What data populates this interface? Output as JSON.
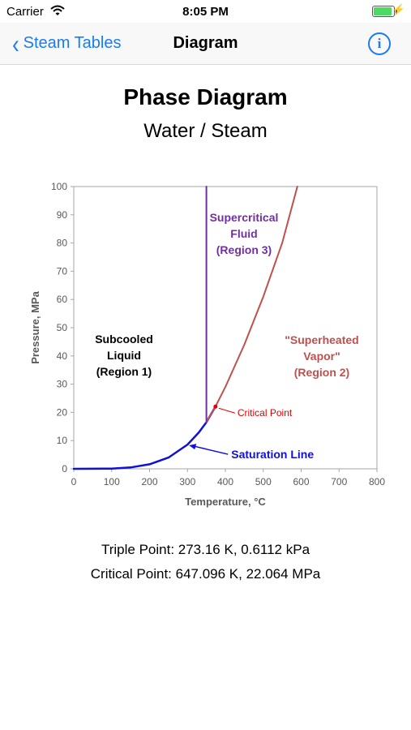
{
  "status_bar": {
    "carrier": "Carrier",
    "time": "8:05 PM"
  },
  "nav": {
    "back_label": "Steam Tables",
    "title": "Diagram"
  },
  "page": {
    "title": "Phase Diagram",
    "subtitle": "Water / Steam"
  },
  "chart_data": {
    "type": "line",
    "xlabel": "Temperature, °C",
    "ylabel": "Pressure, MPa",
    "xlim": [
      0,
      800
    ],
    "ylim": [
      0,
      100
    ],
    "x_ticks": [
      0,
      100,
      200,
      300,
      400,
      500,
      600,
      700,
      800
    ],
    "y_ticks": [
      0,
      10,
      20,
      30,
      40,
      50,
      60,
      70,
      80,
      90,
      100
    ],
    "grid": false,
    "series": [
      {
        "name": "Saturation Line",
        "color": "#1010d8",
        "x": [
          0,
          100,
          150,
          200,
          250,
          300,
          330,
          350,
          374
        ],
        "y": [
          0,
          0.1,
          0.5,
          1.6,
          4.0,
          8.6,
          12.9,
          16.5,
          22.06
        ]
      },
      {
        "color": "#c0504d",
        "x": [
          350,
          374,
          400,
          450,
          500,
          550,
          590
        ],
        "y": [
          16.5,
          22.06,
          29,
          44,
          61,
          80,
          100
        ]
      },
      {
        "color": "#7030a0",
        "x": [
          350,
          350
        ],
        "y": [
          16.5,
          100
        ]
      }
    ],
    "regions": [
      {
        "lines": [
          "Subcooled",
          "Liquid",
          "(Region 1)"
        ],
        "color": "#000000"
      },
      {
        "lines": [
          "Supercritical",
          "Fluid",
          "(Region 3)"
        ],
        "color": "#7030a0"
      },
      {
        "lines": [
          "\"Superheated",
          "Vapor\"",
          "(Region 2)"
        ],
        "color": "#c0504d"
      }
    ],
    "annotations": [
      {
        "text": "Critical Point",
        "x": 374,
        "y": 22.06,
        "color": "#e00000"
      },
      {
        "text": "Saturation Line",
        "x": 300,
        "y": 8.6,
        "color": "#1010d8"
      }
    ]
  },
  "info": {
    "triple_point": "Triple Point: 273.16 K, 0.6112 kPa",
    "critical_point": "Critical Point: 647.096 K, 22.064 MPa"
  }
}
